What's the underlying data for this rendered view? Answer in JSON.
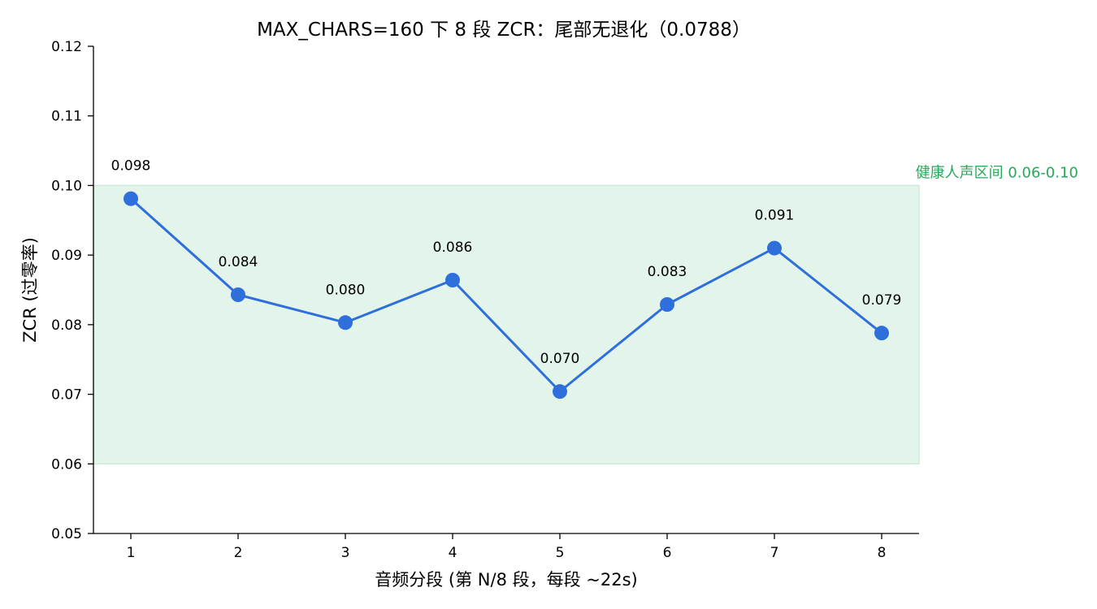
{
  "chart_data": {
    "type": "line",
    "title": "MAX_CHARS=160 下 8 段 ZCR：尾部无退化（0.0788）",
    "xlabel": "音频分段 (第 N/8 段，每段 ~22s)",
    "ylabel": "ZCR (过零率)",
    "x": [
      1,
      2,
      3,
      4,
      5,
      6,
      7,
      8
    ],
    "xticks": [
      "1",
      "2",
      "3",
      "4",
      "5",
      "6",
      "7",
      "8"
    ],
    "ylim": [
      0.05,
      0.12
    ],
    "yticks": [
      "0.05",
      "0.06",
      "0.07",
      "0.08",
      "0.09",
      "0.10",
      "0.11",
      "0.12"
    ],
    "grid": false,
    "series": [
      {
        "values": [
          0.0981,
          0.0843,
          0.0803,
          0.0864,
          0.0704,
          0.0829,
          0.091,
          0.0788
        ],
        "data_labels": [
          "0.098",
          "0.084",
          "0.080",
          "0.086",
          "0.070",
          "0.083",
          "0.091",
          "0.079"
        ],
        "color": "#2f6fdb"
      }
    ],
    "band": {
      "label": "健康人声区间 0.06-0.10",
      "from": 0.06,
      "to": 0.1,
      "fill": "#e3f4ea",
      "edge": "#cdebd8",
      "label_color": "#27a85a"
    }
  }
}
